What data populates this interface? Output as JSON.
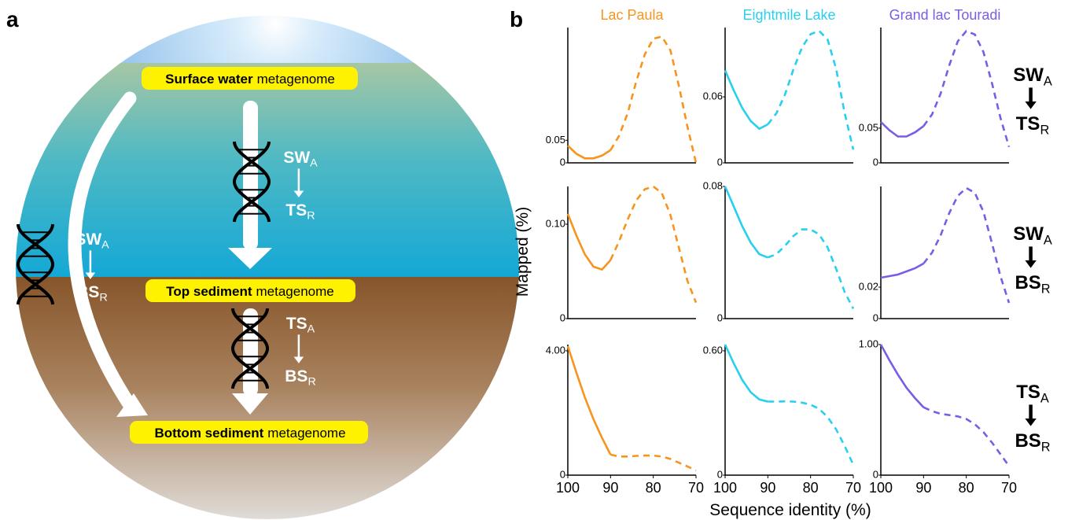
{
  "panel_a": {
    "label": "a",
    "nodes": [
      {
        "bold": "Surface water",
        "rest": "metagenome"
      },
      {
        "bold": "Top sediment",
        "rest": "metagenome"
      },
      {
        "bold": "Bottom sediment",
        "rest": "metagenome"
      }
    ],
    "transfers": [
      {
        "from": "SW",
        "from_sub": "A",
        "to": "TS",
        "to_sub": "R"
      },
      {
        "from": "SW",
        "from_sub": "A",
        "to": "BS",
        "to_sub": "R"
      },
      {
        "from": "TS",
        "from_sub": "A",
        "to": "BS",
        "to_sub": "R"
      }
    ]
  },
  "panel_b": {
    "label": "b",
    "type": "line",
    "ylabel": "Mapped (%)",
    "xlabel": "Sequence identity (%)",
    "xlim": [
      100,
      70
    ],
    "xticks": [
      100,
      90,
      80,
      70
    ],
    "x": [
      100,
      98,
      96,
      94,
      92,
      90,
      88,
      86,
      84,
      82,
      80,
      78,
      76,
      74,
      72,
      70
    ],
    "columns": [
      {
        "name": "Lac Paula",
        "color": "#f7941d"
      },
      {
        "name": "Eightmile Lake",
        "color": "#29d0ee"
      },
      {
        "name": "Grand lac Touradi",
        "color": "#7b5ce6"
      }
    ],
    "rows": [
      {
        "from": "SW",
        "from_sub": "A",
        "to": "TS",
        "to_sub": "R"
      },
      {
        "from": "SW",
        "from_sub": "A",
        "to": "BS",
        "to_sub": "R"
      },
      {
        "from": "TS",
        "from_sub": "A",
        "to": "BS",
        "to_sub": "R"
      }
    ],
    "charts": [
      {
        "ylim": [
          0,
          0.3
        ],
        "yticks": [
          0,
          0.05
        ],
        "series": [
          {
            "style": "solid",
            "values": [
              0.038,
              0.02,
              0.01,
              0.01,
              0.016,
              0.028,
              null,
              null,
              null,
              null,
              null,
              null,
              null,
              null,
              null,
              null
            ]
          },
          {
            "style": "dashed",
            "values": [
              null,
              null,
              null,
              null,
              null,
              0.028,
              0.06,
              0.11,
              0.18,
              0.24,
              0.275,
              0.28,
              0.25,
              0.17,
              0.08,
              0.0
            ]
          }
        ]
      },
      {
        "ylim": [
          0,
          0.123
        ],
        "yticks": [
          0,
          0.06
        ],
        "series": [
          {
            "style": "solid",
            "values": [
              0.084,
              0.066,
              0.05,
              0.038,
              0.031,
              0.035,
              null,
              null,
              null,
              null,
              null,
              null,
              null,
              null,
              null,
              null
            ]
          },
          {
            "style": "dashed",
            "values": [
              null,
              null,
              null,
              null,
              null,
              0.035,
              0.045,
              0.062,
              0.085,
              0.105,
              0.117,
              0.12,
              0.112,
              0.085,
              0.045,
              0.012
            ]
          }
        ]
      },
      {
        "ylim": [
          0,
          0.195
        ],
        "yticks": [
          0,
          0.05
        ],
        "series": [
          {
            "style": "solid",
            "values": [
              0.059,
              0.047,
              0.038,
              0.038,
              0.044,
              0.053,
              null,
              null,
              null,
              null,
              null,
              null,
              null,
              null,
              null,
              null
            ]
          },
          {
            "style": "dashed",
            "values": [
              null,
              null,
              null,
              null,
              null,
              0.053,
              0.07,
              0.1,
              0.14,
              0.175,
              0.19,
              0.185,
              0.16,
              0.115,
              0.065,
              0.023
            ]
          }
        ]
      },
      {
        "ylim": [
          0,
          0.14
        ],
        "yticks": [
          0,
          {
            "value": 0.1,
            "label": "0.10"
          }
        ],
        "series": [
          {
            "style": "solid",
            "values": [
              0.111,
              0.088,
              0.068,
              0.055,
              0.052,
              0.062,
              null,
              null,
              null,
              null,
              null,
              null,
              null,
              null,
              null,
              null
            ]
          },
          {
            "style": "dashed",
            "values": [
              null,
              null,
              null,
              null,
              null,
              0.062,
              0.082,
              0.105,
              0.125,
              0.137,
              0.14,
              0.133,
              0.11,
              0.075,
              0.04,
              0.017
            ]
          }
        ]
      },
      {
        "ylim": [
          0,
          0.08
        ],
        "yticks": [
          0,
          0.08
        ],
        "series": [
          {
            "style": "solid",
            "values": [
              0.08,
              0.068,
              0.056,
              0.046,
              0.039,
              0.037,
              null,
              null,
              null,
              null,
              null,
              null,
              null,
              null,
              null,
              null
            ]
          },
          {
            "style": "dashed",
            "values": [
              null,
              null,
              null,
              null,
              null,
              0.037,
              0.039,
              0.044,
              0.05,
              0.054,
              0.054,
              0.051,
              0.043,
              0.03,
              0.016,
              0.006
            ]
          }
        ]
      },
      {
        "ylim": [
          0,
          0.084
        ],
        "yticks": [
          0,
          0.02
        ],
        "series": [
          {
            "style": "solid",
            "values": [
              0.026,
              0.027,
              0.028,
              0.03,
              0.032,
              0.035,
              null,
              null,
              null,
              null,
              null,
              null,
              null,
              null,
              null,
              null
            ]
          },
          {
            "style": "dashed",
            "values": [
              null,
              null,
              null,
              null,
              null,
              0.035,
              0.042,
              0.053,
              0.067,
              0.078,
              0.083,
              0.08,
              0.068,
              0.048,
              0.027,
              0.01
            ]
          }
        ]
      },
      {
        "ylim": [
          0,
          4.2
        ],
        "yticks": [
          0,
          {
            "value": 4,
            "label": "4.00"
          }
        ],
        "series": [
          {
            "style": "solid",
            "values": [
              4.15,
              3.3,
              2.5,
              1.8,
              1.2,
              0.66,
              null,
              null,
              null,
              null,
              null,
              null,
              null,
              null,
              null,
              null
            ]
          },
          {
            "style": "dashed",
            "values": [
              null,
              null,
              null,
              null,
              null,
              0.66,
              0.6,
              0.6,
              0.62,
              0.63,
              0.63,
              0.6,
              0.52,
              0.4,
              0.28,
              0.15
            ]
          }
        ]
      },
      {
        "ylim": [
          0,
          0.63
        ],
        "yticks": [
          0,
          {
            "value": 0.6,
            "label": "0.60"
          }
        ],
        "series": [
          {
            "style": "solid",
            "values": [
              0.63,
              0.54,
              0.46,
              0.4,
              0.365,
              0.355,
              null,
              null,
              null,
              null,
              null,
              null,
              null,
              null,
              null,
              null
            ]
          },
          {
            "style": "dashed",
            "values": [
              null,
              null,
              null,
              null,
              null,
              0.355,
              0.355,
              0.356,
              0.355,
              0.35,
              0.34,
              0.32,
              0.28,
              0.22,
              0.14,
              0.05
            ]
          }
        ]
      },
      {
        "ylim": [
          0,
          1
        ],
        "yticks": [
          0,
          {
            "value": 1,
            "label": "1.00"
          }
        ],
        "series": [
          {
            "style": "solid",
            "values": [
              1.0,
              0.88,
              0.77,
              0.67,
              0.59,
              0.52,
              null,
              null,
              null,
              null,
              null,
              null,
              null,
              null,
              null,
              null
            ]
          },
          {
            "style": "dashed",
            "values": [
              null,
              null,
              null,
              null,
              null,
              0.52,
              0.49,
              0.47,
              0.46,
              0.45,
              0.43,
              0.39,
              0.33,
              0.25,
              0.16,
              0.07
            ]
          }
        ]
      }
    ]
  }
}
